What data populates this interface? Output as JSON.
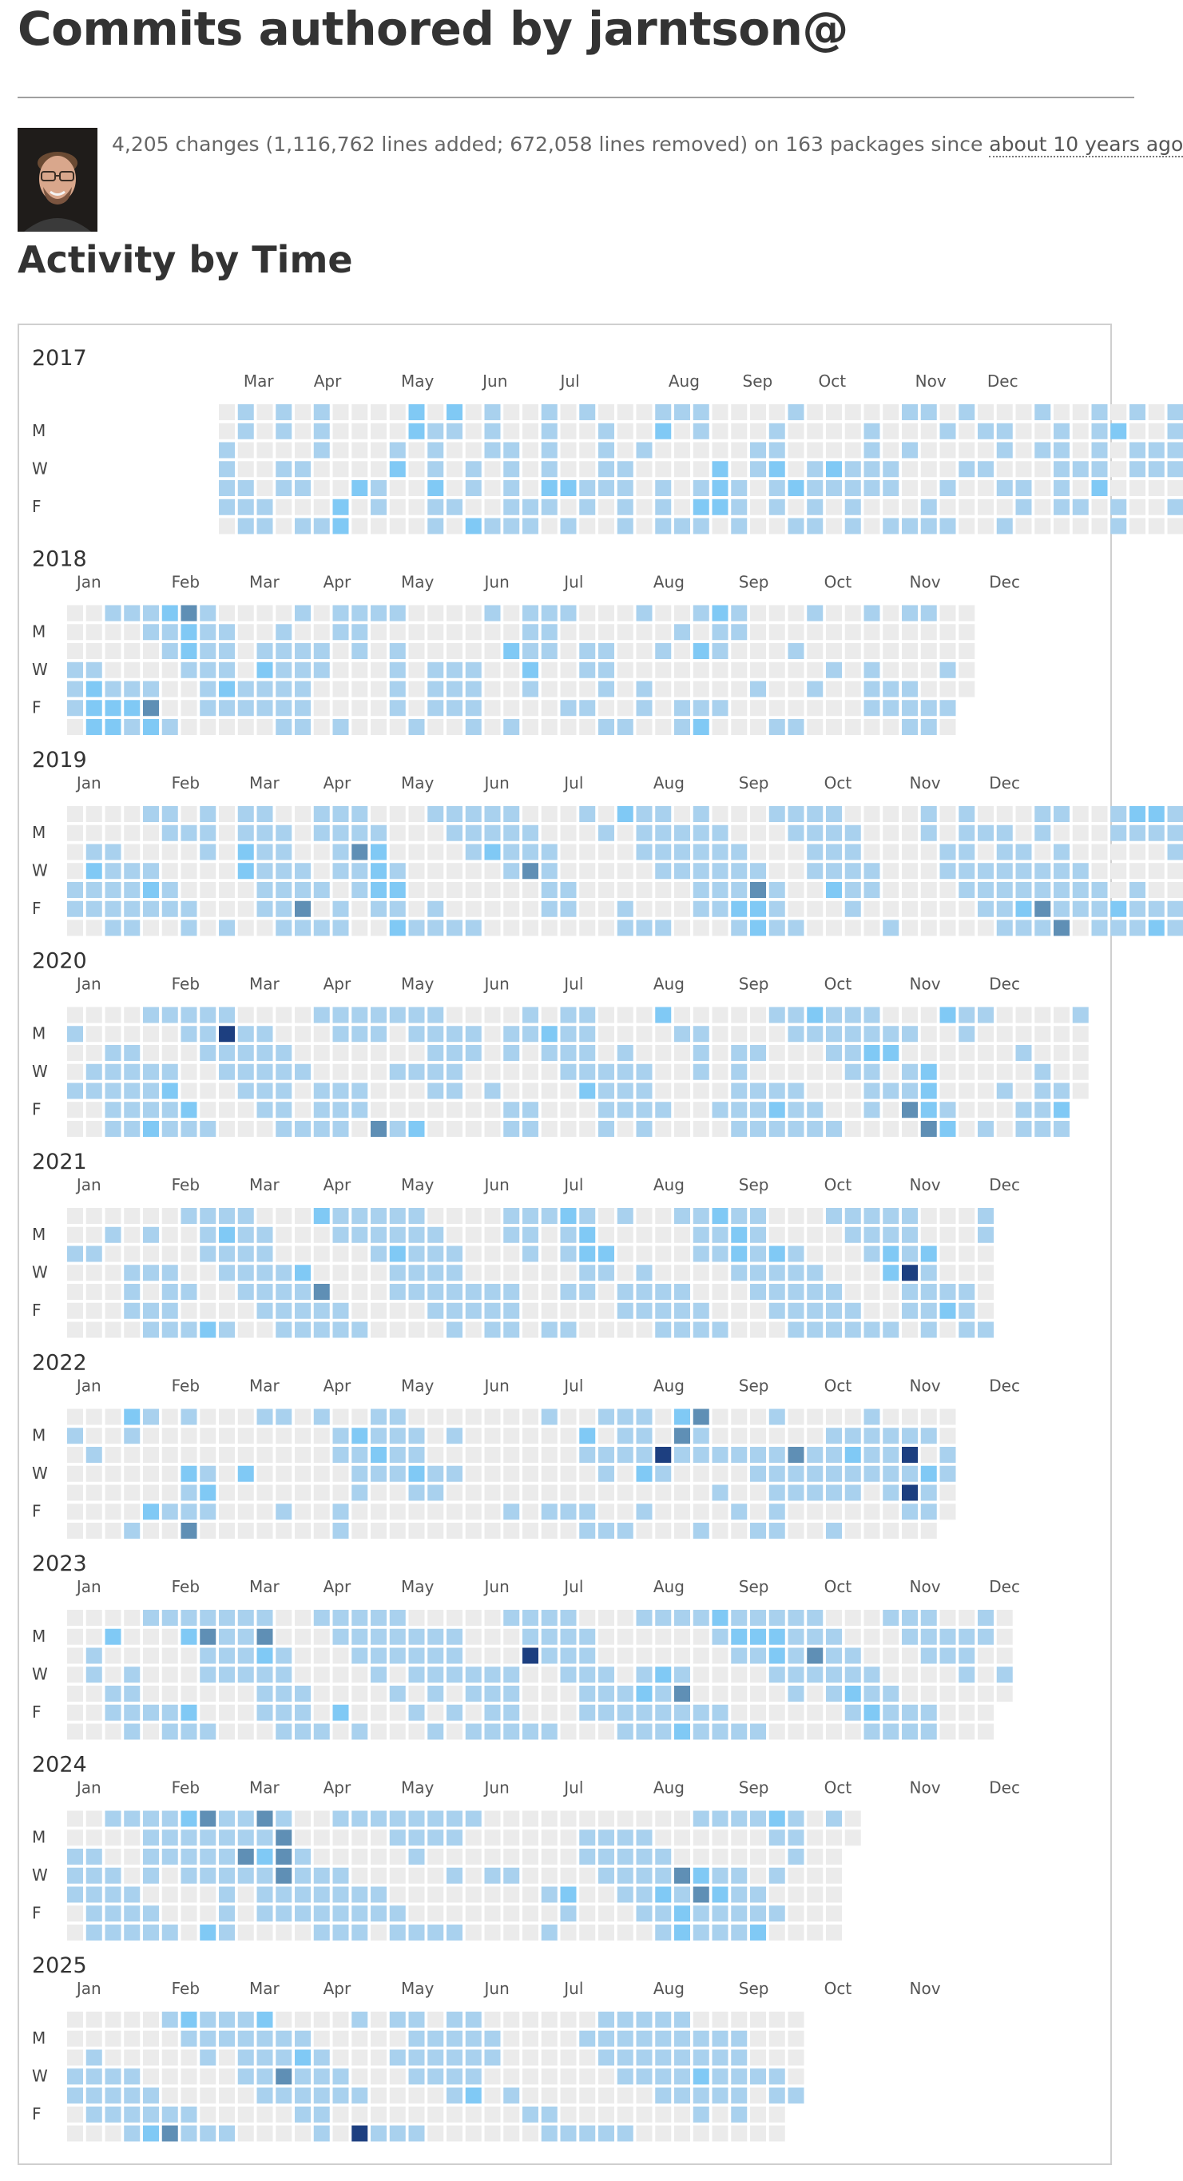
{
  "header": {
    "title": "Commits authored by jarntson@",
    "summary_text": "4,205 changes (1,116,762 lines added; 672,058 lines removed) on 163 packages since ",
    "since_label": "about 10 years ago"
  },
  "section_title": "Activity by Time",
  "weekday_labels": [
    "M",
    "W",
    "F"
  ],
  "month_labels": [
    "Jan",
    "Feb",
    "Mar",
    "Apr",
    "May",
    "Jun",
    "Jul",
    "Aug",
    "Sep",
    "Oct",
    "Nov",
    "Dec"
  ],
  "colors": {
    "empty": "#ebebeb",
    "level1": "#a9d1ee",
    "level2": "#80c9f5",
    "level3": "#5f8fb5",
    "level4": "#1d3f80",
    "panel_border": "#cfcfcf"
  },
  "chart_data": {
    "type": "heatmap",
    "levels": [
      0,
      1,
      2,
      3,
      4
    ],
    "years": [
      {
        "year": "2017",
        "months": [
          "Mar",
          "Apr",
          "May",
          "Jun",
          "Jul",
          "Aug",
          "Sep",
          "Oct",
          "Nov",
          "Dec"
        ],
        "first_week": 9,
        "last_week": 52,
        "cells": "0011110110011100000111101100000110111100010000022000020000001100012000220000001112112100010000110211100010011111000001111112100000201100011001111000001111001000012001111000001110012100022200000111001100001121101000201000111100021000001111011110000011011010001100001101001011001000010100001101010000110101000001111100001010111120002000111011000001100011110100111111000000114101100001111111111200111120000112012100022121200000"
      },
      {
        "year": "2018",
        "months": [
          "Jan",
          "Feb",
          "Mar",
          "Apr",
          "May",
          "Jun",
          "Jul",
          "Aug",
          "Sep",
          "Oct",
          "Nov",
          "Dec"
        ],
        "first_week": 1,
        "last_week": 52,
        "cells": "0001110000122210001221000121110013221100013221000111111001112100000110001211001111111011111001100011000011110000100000010111100000001000111000011100001111100000000200011112100111000010000100011010001110100000011000110001000001000111020012211001011000000000100000000100100011000100000100000000001001110000011010001111000011000101000000"
      },
      {
        "year": "2019",
        "months": [
          "Jan",
          "Feb",
          "Mar",
          "Apr",
          "May",
          "Jun",
          "Jul",
          "Aug",
          "Sep",
          "Oct",
          "Nov",
          "Dec"
        ],
        "first_week": 1,
        "last_week": 52,
        "cells": "0000110001211000111110001111100121011001100100011111000000000011122000111111001111110001131110010111110111131100012221000012120000001100001111000011110001112000011110000113000001111000001101000000010000020000111110001111100101110001111110011111000111210001322100011111000011111000111120001111100001100000000100000001100000001100011111000101110011111100111211101131101111300011100000111110002121001112100012111001100100001000110000000010000001000000011"
      },
      {
        "year": "2020",
        "months": [
          "Jan",
          "Feb",
          "Mar",
          "Apr",
          "May",
          "Jun",
          "Jul",
          "Aug",
          "Sep",
          "Oct",
          "Nov",
          "Dec"
        ],
        "first_week": 1,
        "last_week": 52,
        "cells": "0100100000110000111110011111100111210012111100021111000114110000111100011111000111110001001100011111001111100110110000310010011101002111110001111000110000000010001100111100011021000011110001111200000111100111100001111200001001000000111000000001000111110010111100012111001112100011111000111110001121110012010001011300002223200001211000001000001000010000100110001111000012110000"
      },
      {
        "year": "2021",
        "months": [
          "Jan",
          "Feb",
          "Mar",
          "Apr",
          "May",
          "Jun",
          "Jul",
          "Aug",
          "Sep",
          "Oct",
          "Nov",
          "Dec"
        ],
        "first_week": 1,
        "last_week": 52,
        "cells": "0010000001000001000000001110010101100011111000101111000212110011111100011111000011110002111200031111000111100001111000011211001111100011111000111110000110000011111001111110000100000121101011221100002100010001100001110000011110001111110011211000112210001111100002111000111110001111100011111000111110001112200111141100021111000012000001111100001"
      },
      {
        "year": "2022",
        "months": [
          "Jan",
          "Feb",
          "Mar",
          "Apr",
          "May",
          "Jun",
          "Jul",
          "Aug",
          "Sep",
          "Oct",
          "Nov",
          "Dec"
        ],
        "first_week": 1,
        "last_week": 52,
        "cells": "0100000001000000000002100001100002000000101002113000121000000000002000100000010000100000000100000001100110211100112100011110000112100000110001010000000000000000000000100000000100001000000100210011101100111100011112010004100023100003110001001010000100100011001101111100311000011100011110101211001111000011110001414100102110001100"
      },
      {
        "year": "2023",
        "months": [
          "Jan",
          "Feb",
          "Mar",
          "Apr",
          "May",
          "Jun",
          "Jul",
          "Aug",
          "Sep",
          "Oct",
          "Nov",
          "Dec"
        ],
        "first_week": 1,
        "last_week": 53,
        "cells": "000000000110000200110000111110000101000011120002113110011111000111100013211100011111000011110000011100020111000111110001110100011101001111010111010000110100011111001111114000111100011111000011111000011100000111100121110021111001312100001121000111210001121000112210001111100113100001111000011210000112110001111100011111001101100000111000110000000010"
      },
      {
        "year": "2024",
        "months": [
          "Jan",
          "Feb",
          "Mar",
          "Apr",
          "May",
          "Jun",
          "Jul",
          "Aug",
          "Sep",
          "Oct",
          "Nov",
          "Dec"
        ],
        "first_week": 1,
        "last_week": 52,
        "cells": "0011100001111110011111000111111101111100012111000311100211111111131000312111013331100011110000111110011111000111100011011000111110001110000111010011000000000100000010000000000000010100002100110000011100001111000111110001121100031221002311100121110011111000112210101011100000000000100000000"
      },
      {
        "year": "2025",
        "months": [
          "Jan",
          "Feb",
          "Mar",
          "Apr",
          "May",
          "Jun",
          "Jul",
          "Aug",
          "Sep",
          "Oct",
          "Nov"
        ],
        "first_week": 1,
        "last_week": 46,
        "cells": "0001100001111000011100001111000011210000132100011111000111000011111000211110001131000121110001111100011001000104000000110100011111001011100011111001111200011000000001000000010000001100000010100001111000111110011111000111110011111000112110011110001111100001000000110000001"
      }
    ]
  }
}
